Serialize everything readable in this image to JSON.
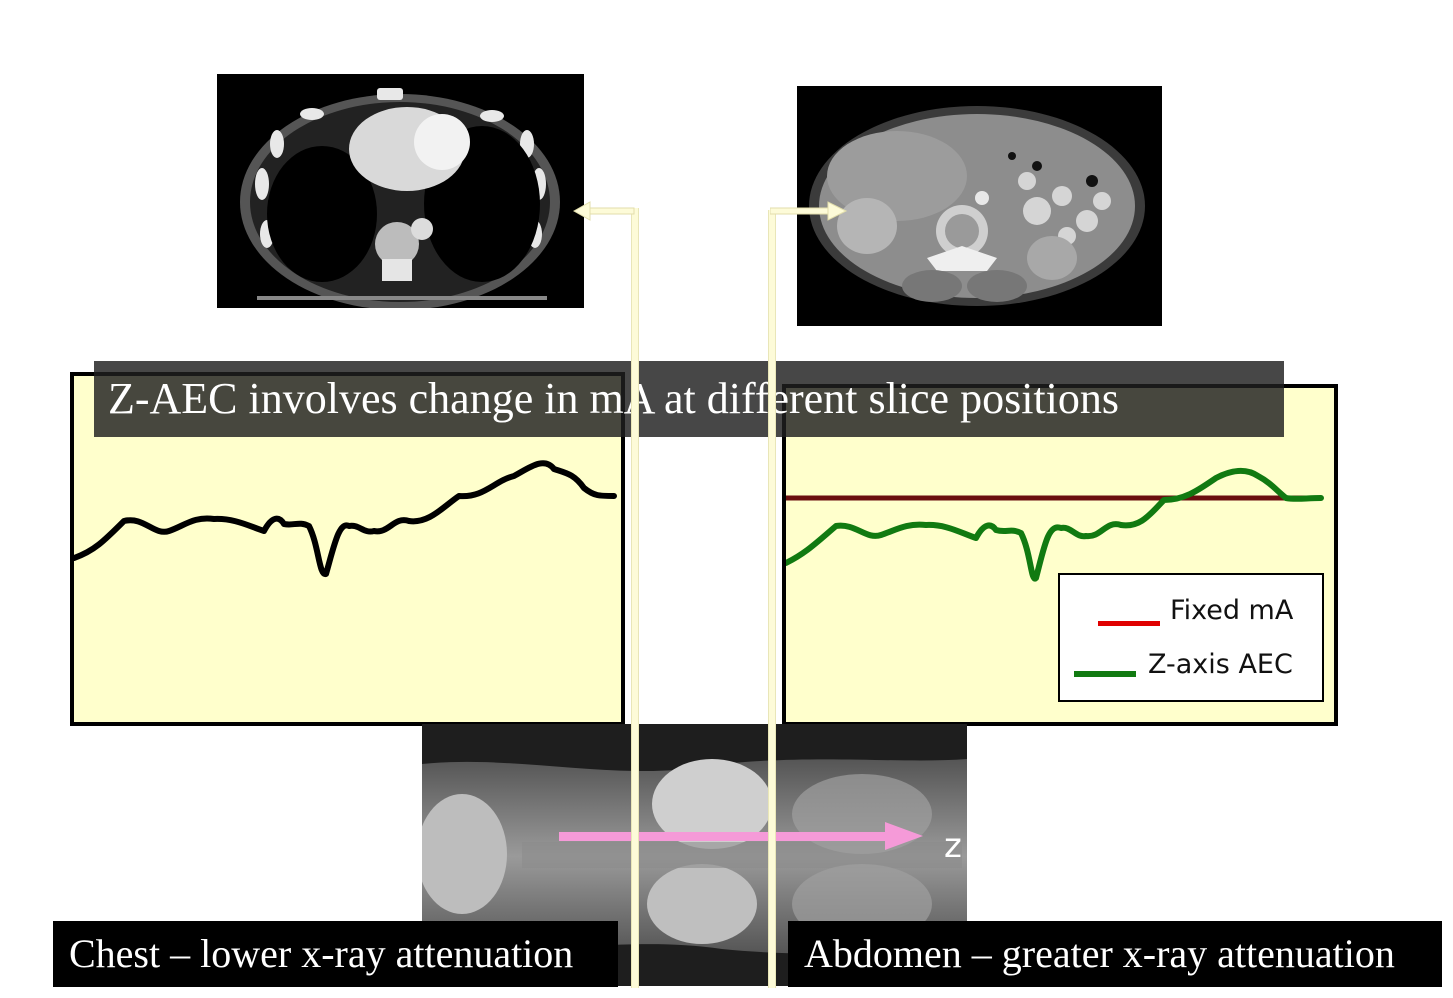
{
  "title": "Z-AEC involves change in mA at different slice positions",
  "captions": {
    "chest": "Chest – lower x-ray attenuation",
    "abdomen": "Abdomen – greater x-ray attenuation"
  },
  "legend": {
    "fixed_label": "Fixed mA",
    "aec_label": "Z-axis AEC"
  },
  "scout": {
    "axis_label": "z"
  },
  "colors": {
    "plot_bg": "#ffffcc",
    "chest_curve": "#000000",
    "aec_curve": "#117a11",
    "fixed_line": "#6b0f0f",
    "legend_fixed": "#e00000",
    "legend_aec": "#117a11",
    "z_arrow": "#f59ad8",
    "guide_lines": "#fdfbd8"
  },
  "icons": {
    "chest_ct": "chest-ct-slice-image",
    "abdomen_ct": "abdomen-ct-slice-image",
    "scout": "scout-radiograph-image",
    "chest_pointer": "left-arrow-icon",
    "abdomen_pointer": "right-arrow-icon",
    "z_arrow": "z-direction-arrow-icon"
  }
}
